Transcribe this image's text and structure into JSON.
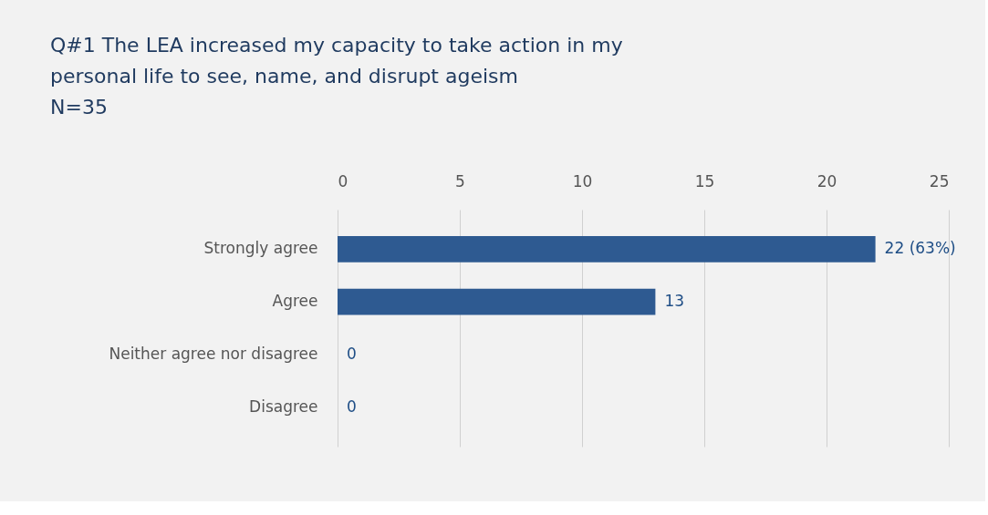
{
  "chart_data": {
    "type": "bar",
    "orientation": "horizontal",
    "title": "Q#1 The LEA increased my capacity to take action in my personal life to see, name, and disrupt ageism",
    "subtitle": "N=35",
    "categories": [
      "Strongly agree",
      "Agree",
      "Neither agree nor disagree",
      "Disagree"
    ],
    "values": [
      22,
      13,
      0,
      0
    ],
    "color": "#2e5a91",
    "value_labels": [
      "22 (63%)",
      "13",
      "0",
      "0"
    ],
    "xlim": [
      0,
      25
    ],
    "xticks": [
      0,
      5,
      10,
      15,
      20,
      25
    ],
    "grid": "x"
  }
}
